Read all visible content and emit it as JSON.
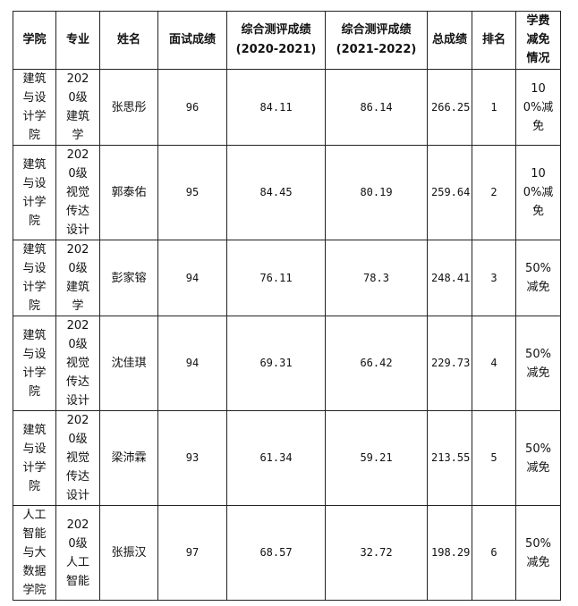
{
  "table": {
    "headers": [
      "学院",
      "专业",
      "姓名",
      "面试成绩",
      "综合测评成绩",
      "(2020-2021)",
      "综合测评成绩",
      "(2021-2022)",
      "总成绩",
      "排名",
      "学费减免情况"
    ],
    "rows": [
      {
        "college": "建筑与设计学院",
        "major": "2020级建筑学",
        "name": "张思彤",
        "interview": "96",
        "eval1": "84.11",
        "eval2": "86.14",
        "total": "266.25",
        "rank": "1",
        "waiver": "100%减免"
      },
      {
        "college": "建筑与设计学院",
        "major": "2020级视觉传达设计",
        "name": "郭泰佑",
        "interview": "95",
        "eval1": "84.45",
        "eval2": "80.19",
        "total": "259.64",
        "rank": "2",
        "waiver": "100%减免"
      },
      {
        "college": "建筑与设计学院",
        "major": "2020级建筑学",
        "name": "彭家镕",
        "interview": "94",
        "eval1": "76.11",
        "eval2": "78.3",
        "total": "248.41",
        "rank": "3",
        "waiver": "50%减免"
      },
      {
        "college": "建筑与设计学院",
        "major": "2020级视觉传达设计",
        "name": "沈佳琪",
        "interview": "94",
        "eval1": "69.31",
        "eval2": "66.42",
        "total": "229.73",
        "rank": "4",
        "waiver": "50%减免"
      },
      {
        "college": "建筑与设计学院",
        "major": "2020级视觉传达设计",
        "name": "梁沛霖",
        "interview": "93",
        "eval1": "61.34",
        "eval2": "59.21",
        "total": "213.55",
        "rank": "5",
        "waiver": "50%减免"
      },
      {
        "college": "人工智能与大数据学院",
        "major": "2020级人工智能",
        "name": "张振汉",
        "interview": "97",
        "eval1": "68.57",
        "eval2": "32.72",
        "total": "198.29",
        "rank": "6",
        "waiver": "50%减免"
      }
    ]
  }
}
